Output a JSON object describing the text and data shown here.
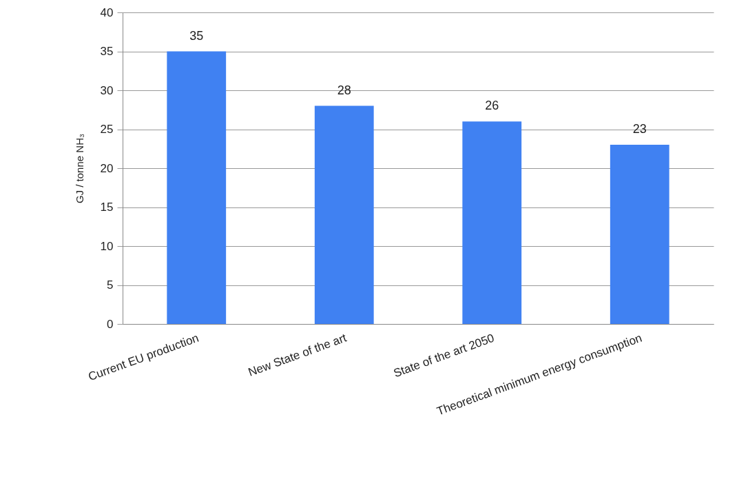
{
  "chart_data": {
    "type": "bar",
    "ylabel": "GJ / tonne NH₃",
    "categories": [
      "Current EU production",
      "New State of the art",
      "State of the art 2050",
      "Theoretical minimum energy consumption"
    ],
    "values": [
      35,
      28,
      26,
      23
    ],
    "color": "#4081f2",
    "ylim": [
      0,
      40
    ],
    "yticks": [
      0,
      5,
      10,
      15,
      20,
      25,
      30,
      35,
      40
    ],
    "grid": "y",
    "data_labels": true
  }
}
